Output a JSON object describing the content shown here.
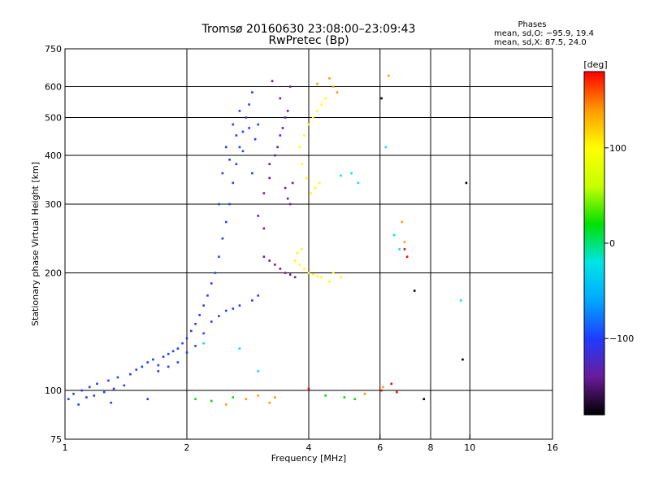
{
  "chart_data": {
    "type": "scatter",
    "title": "Tromsø 20160630 23:08:00–23:09:43",
    "subtitle": "RwPretec (Bp)",
    "xlabel": "Frequency [MHz]",
    "ylabel": "Stationary phase Virtual Height [km]",
    "xscale": "log",
    "yscale": "log",
    "xlim": [
      1,
      16
    ],
    "ylim": [
      75,
      750
    ],
    "x_ticks": [
      1,
      2,
      4,
      6,
      8,
      10,
      16
    ],
    "x_ticks_labels": [
      "1",
      "2",
      "4",
      "6",
      "8",
      "10",
      "16"
    ],
    "x_gridlines": [
      2,
      4,
      6,
      8,
      10
    ],
    "y_ticks": [
      75,
      100,
      200,
      300,
      400,
      500,
      600,
      750
    ],
    "y_ticks_labels": [
      "75",
      "100",
      "200",
      "300",
      "400",
      "500",
      "600",
      "750"
    ],
    "y_gridlines": [
      100,
      200,
      300,
      400,
      500,
      600
    ],
    "grid": true,
    "legend": {
      "title": "Phases",
      "lines": [
        "mean, sd,O: −95.9, 19.4",
        "mean, sd,X:  87.5, 24.0"
      ],
      "placement": "top-right"
    },
    "colorbar": {
      "label": "[deg]",
      "range": [
        -180,
        180
      ],
      "ticks": [
        100,
        0,
        -100
      ],
      "ticks_labels": [
        "100",
        "0",
        "−100"
      ],
      "colors": [
        "#000000",
        "#6a1b9a",
        "#1f3cff",
        "#00a8ff",
        "#00e5e5",
        "#00e000",
        "#c8ff00",
        "#ffff00",
        "#ff9900",
        "#ff0000"
      ]
    },
    "series": [
      {
        "color": "#1f3cff",
        "points": [
          [
            1.02,
            95
          ],
          [
            1.05,
            98
          ],
          [
            1.08,
            92
          ],
          [
            1.1,
            100
          ],
          [
            1.13,
            96
          ],
          [
            1.15,
            102
          ],
          [
            1.18,
            97
          ],
          [
            1.2,
            104
          ],
          [
            1.25,
            99
          ],
          [
            1.28,
            106
          ],
          [
            1.32,
            101
          ],
          [
            1.35,
            108
          ],
          [
            1.4,
            103
          ],
          [
            1.45,
            110
          ],
          [
            1.5,
            113
          ],
          [
            1.55,
            115
          ],
          [
            1.6,
            118
          ],
          [
            1.65,
            120
          ],
          [
            1.7,
            116
          ],
          [
            1.75,
            122
          ],
          [
            1.8,
            124
          ],
          [
            1.85,
            126
          ],
          [
            1.9,
            128
          ],
          [
            1.95,
            132
          ],
          [
            2.0,
            136
          ],
          [
            2.05,
            142
          ],
          [
            2.1,
            148
          ],
          [
            2.15,
            156
          ],
          [
            2.2,
            165
          ],
          [
            2.25,
            175
          ],
          [
            2.3,
            188
          ],
          [
            2.35,
            200
          ],
          [
            2.4,
            220
          ],
          [
            2.45,
            245
          ],
          [
            2.5,
            270
          ],
          [
            2.55,
            300
          ],
          [
            2.6,
            340
          ],
          [
            2.65,
            380
          ],
          [
            2.7,
            420
          ],
          [
            2.75,
            460
          ],
          [
            2.8,
            500
          ],
          [
            2.85,
            540
          ],
          [
            2.9,
            580
          ],
          [
            2.5,
            420
          ],
          [
            2.6,
            480
          ],
          [
            2.7,
            520
          ],
          [
            2.55,
            390
          ],
          [
            2.65,
            450
          ],
          [
            2.75,
            410
          ],
          [
            2.85,
            470
          ],
          [
            2.45,
            360
          ],
          [
            2.95,
            440
          ],
          [
            3.0,
            480
          ],
          [
            2.4,
            300
          ],
          [
            2.9,
            360
          ],
          [
            1.9,
            118
          ],
          [
            2.0,
            125
          ],
          [
            2.1,
            130
          ],
          [
            1.7,
            112
          ],
          [
            1.8,
            115
          ],
          [
            2.3,
            150
          ],
          [
            2.5,
            160
          ],
          [
            2.7,
            165
          ],
          [
            2.9,
            170
          ],
          [
            3.0,
            175
          ],
          [
            2.2,
            140
          ],
          [
            2.4,
            155
          ],
          [
            2.6,
            162
          ],
          [
            1.6,
            95
          ],
          [
            1.3,
            93
          ]
        ]
      },
      {
        "color": "#6a1b9a",
        "points": [
          [
            3.1,
            320
          ],
          [
            3.2,
            350
          ],
          [
            3.3,
            400
          ],
          [
            3.4,
            450
          ],
          [
            3.5,
            500
          ],
          [
            3.0,
            280
          ],
          [
            3.1,
            260
          ],
          [
            3.2,
            380
          ],
          [
            3.35,
            420
          ],
          [
            3.45,
            470
          ],
          [
            3.55,
            520
          ],
          [
            3.6,
            600
          ],
          [
            3.25,
            620
          ],
          [
            3.4,
            560
          ],
          [
            3.5,
            330
          ],
          [
            3.6,
            300
          ],
          [
            3.3,
            210
          ],
          [
            3.4,
            205
          ],
          [
            3.5,
            200
          ],
          [
            3.6,
            198
          ],
          [
            3.7,
            195
          ],
          [
            3.2,
            215
          ],
          [
            3.1,
            220
          ],
          [
            3.55,
            310
          ],
          [
            3.65,
            340
          ]
        ]
      },
      {
        "color": "#ffff00",
        "points": [
          [
            3.8,
            420
          ],
          [
            3.9,
            450
          ],
          [
            4.0,
            480
          ],
          [
            4.1,
            500
          ],
          [
            4.2,
            520
          ],
          [
            4.3,
            540
          ],
          [
            4.4,
            560
          ],
          [
            3.85,
            380
          ],
          [
            3.95,
            350
          ],
          [
            4.05,
            320
          ],
          [
            4.15,
            330
          ],
          [
            4.25,
            340
          ],
          [
            3.7,
            215
          ],
          [
            3.8,
            210
          ],
          [
            3.9,
            205
          ],
          [
            4.0,
            200
          ],
          [
            4.1,
            198
          ],
          [
            4.2,
            196
          ],
          [
            4.3,
            195
          ],
          [
            4.5,
            190
          ],
          [
            3.75,
            225
          ],
          [
            3.85,
            230
          ],
          [
            4.6,
            200
          ],
          [
            4.8,
            195
          ]
        ]
      },
      {
        "color": "#00e000",
        "points": [
          [
            2.1,
            95
          ],
          [
            2.3,
            94
          ],
          [
            2.6,
            96
          ],
          [
            4.4,
            97
          ],
          [
            4.9,
            96
          ],
          [
            5.2,
            95
          ]
        ]
      },
      {
        "color": "#ff9900",
        "points": [
          [
            2.5,
            92
          ],
          [
            2.8,
            95
          ],
          [
            3.0,
            97
          ],
          [
            3.2,
            93
          ],
          [
            3.3,
            96
          ],
          [
            4.5,
            630
          ],
          [
            4.6,
            600
          ],
          [
            4.7,
            580
          ],
          [
            5.5,
            98
          ],
          [
            6.1,
            102
          ],
          [
            6.3,
            640
          ],
          [
            6.8,
            270
          ],
          [
            6.9,
            240
          ],
          [
            4.2,
            610
          ]
        ]
      },
      {
        "color": "#00e5e5",
        "points": [
          [
            2.2,
            132
          ],
          [
            2.7,
            128
          ],
          [
            3.0,
            112
          ],
          [
            5.1,
            360
          ],
          [
            5.3,
            340
          ],
          [
            6.5,
            250
          ],
          [
            6.7,
            230
          ],
          [
            9.5,
            170
          ],
          [
            6.2,
            420
          ],
          [
            4.8,
            355
          ]
        ]
      },
      {
        "color": "#ff0000",
        "points": [
          [
            4.0,
            101
          ],
          [
            6.4,
            104
          ],
          [
            6.6,
            99
          ],
          [
            6.9,
            230
          ],
          [
            7.0,
            220
          ],
          [
            6.05,
            100
          ]
        ]
      },
      {
        "color": "#000000",
        "points": [
          [
            7.3,
            180
          ],
          [
            9.6,
            120
          ],
          [
            9.8,
            340
          ],
          [
            7.7,
            95
          ],
          [
            6.05,
            560
          ]
        ]
      }
    ]
  }
}
